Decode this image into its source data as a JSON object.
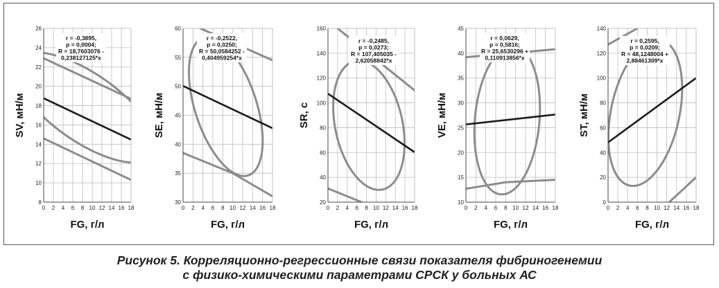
{
  "caption": {
    "line1": "Рисунок 5. Корреляционно-регрессионные связи показателя фибриногенемии",
    "line2": "с физико-химическими параметрами СРСК у больных АС"
  },
  "colors": {
    "regression": "#1a1a1a",
    "confidence": "#8c8c8c",
    "grid": "#bdbdbd",
    "axis": "#444444"
  },
  "chart_data": [
    {
      "type": "line",
      "xlabel": "FG, г/л",
      "ylabel": "SV, мН/м",
      "xlim": [
        0,
        18
      ],
      "ylim": [
        8,
        26
      ],
      "xticks": [
        0,
        2,
        4,
        6,
        8,
        10,
        12,
        14,
        16,
        18
      ],
      "yticks": [
        8,
        10,
        12,
        14,
        16,
        18,
        20,
        22,
        24,
        26
      ],
      "regression": {
        "intercept": 18.7603076,
        "slope": -0.238127125
      },
      "annotation": [
        "r = -0,3895,",
        "p = 0,0004;",
        "R = 18,7603076 -",
        "0,238127125*x"
      ],
      "confidence_lines": [
        {
          "x": [
            0,
            18
          ],
          "y": [
            22.9,
            18.7
          ]
        },
        {
          "x": [
            0,
            18
          ],
          "y": [
            14.6,
            10.3
          ]
        }
      ],
      "ellipse": {
        "cx": 8.6,
        "cy": 17.8,
        "rx": 7.0,
        "ry": 8.6,
        "angle_deg": -55
      }
    },
    {
      "type": "line",
      "xlabel": "FG, г/л",
      "ylabel": "SE, мН/м",
      "xlim": [
        0,
        18
      ],
      "ylim": [
        30,
        60
      ],
      "xticks": [
        0,
        2,
        4,
        6,
        8,
        10,
        12,
        14,
        16,
        18
      ],
      "yticks": [
        30,
        35,
        40,
        45,
        50,
        55,
        60
      ],
      "regression": {
        "intercept": 50.0584252,
        "slope": -0.404959254
      },
      "annotation": [
        "r = -0,2522,",
        "p = 0,0250;",
        "R = 50,0584252 -",
        "0,404959254*x"
      ],
      "confidence_lines": [
        {
          "x": [
            3.5,
            18
          ],
          "y": [
            60,
            54.5
          ]
        },
        {
          "x": [
            0,
            10,
            18
          ],
          "y": [
            38.5,
            35.0,
            31.0
          ]
        }
      ],
      "ellipse": {
        "cx": 8.6,
        "cy": 46.5,
        "rx": 6.2,
        "ry": 12.5,
        "angle_deg": -18
      }
    },
    {
      "type": "line",
      "xlabel": "FG, г/л",
      "ylabel": "SR, с",
      "xlim": [
        0,
        18
      ],
      "ylim": [
        20,
        160
      ],
      "xticks": [
        0,
        2,
        4,
        6,
        8,
        10,
        12,
        14,
        16,
        18
      ],
      "yticks": [
        20,
        40,
        60,
        80,
        100,
        120,
        140,
        160
      ],
      "regression": {
        "intercept": 107.405035,
        "slope": -2.62058842
      },
      "annotation": [
        "r = -0,2485,",
        "p = 0,0273;",
        "R = 107,405035 -",
        "2,62058842*x"
      ],
      "confidence_lines": [
        {
          "x": [
            2,
            18
          ],
          "y": [
            160,
            110
          ]
        },
        {
          "x": [
            0,
            7
          ],
          "y": [
            31,
            20
          ]
        }
      ],
      "ellipse": {
        "cx": 8.5,
        "cy": 82.0,
        "rx": 7.0,
        "ry": 53.0,
        "angle_deg": -12
      }
    },
    {
      "type": "line",
      "xlabel": "FG, г/л",
      "ylabel": "VE, мН/м",
      "xlim": [
        0,
        18
      ],
      "ylim": [
        10,
        45
      ],
      "xticks": [
        0,
        2,
        4,
        6,
        8,
        10,
        12,
        14,
        16,
        18
      ],
      "yticks": [
        10,
        15,
        20,
        25,
        30,
        35,
        40,
        45
      ],
      "regression": {
        "intercept": 25.6530296,
        "slope": 0.110913856
      },
      "annotation": [
        "r = 0,0629,",
        "p = 0,5816;",
        "R = 25,6530296 +",
        "0,110913856*x"
      ],
      "confidence_lines": [
        {
          "x": [
            0,
            18
          ],
          "y": [
            39.2,
            40.8
          ]
        },
        {
          "x": [
            0,
            8,
            18
          ],
          "y": [
            12.7,
            14.0,
            14.5
          ]
        }
      ],
      "ellipse": {
        "cx": 8.3,
        "cy": 26.5,
        "rx": 6.5,
        "ry": 15.0,
        "angle_deg": 5
      }
    },
    {
      "type": "line",
      "xlabel": "FG, г/л",
      "ylabel": "ST, мН/м",
      "xlim": [
        0,
        18
      ],
      "ylim": [
        0,
        140
      ],
      "xticks": [
        0,
        2,
        4,
        6,
        8,
        10,
        12,
        14,
        16,
        18
      ],
      "yticks": [
        0,
        20,
        40,
        60,
        80,
        100,
        120,
        140
      ],
      "regression": {
        "intercept": 48.1248004,
        "slope": 2.88461309
      },
      "annotation": [
        "r = 0,2595,",
        "p = 0,0209;",
        "R = 48,1248004 +",
        "2,88461309*x"
      ],
      "confidence_lines": [
        {
          "x": [
            0,
            6
          ],
          "y": [
            127,
            140
          ]
        },
        {
          "x": [
            12.5,
            18
          ],
          "y": [
            0,
            20
          ]
        }
      ],
      "ellipse": {
        "cx": 7.6,
        "cy": 72.0,
        "rx": 7.0,
        "ry": 60.0,
        "angle_deg": 12
      }
    }
  ]
}
